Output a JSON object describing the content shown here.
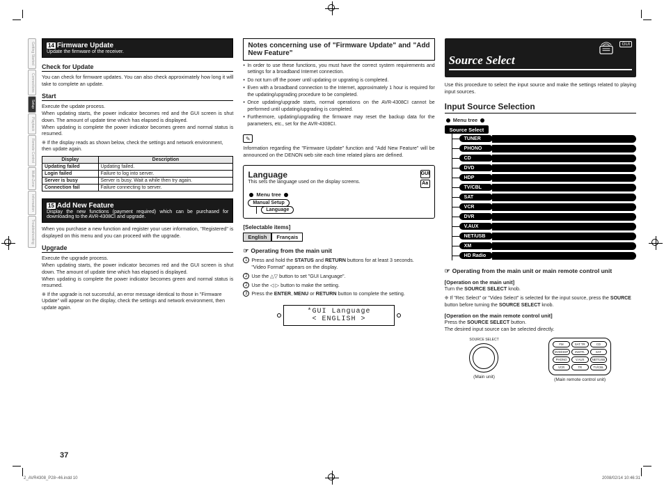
{
  "sidetabs": [
    "Getting Started",
    "Connections",
    "Setup",
    "Playback",
    "Remote Control",
    "Multi-Zone",
    "Information",
    "Troubleshooting"
  ],
  "sidetab_active_index": 2,
  "col1": {
    "fw_badge": "14",
    "fw_title": "Firmware Update",
    "fw_sub": "Update the firmware of the receiver.",
    "check_head": "Check for Update",
    "check_body": "You can check for firmware updates. You can also check approximately how long it will take to complete an update.",
    "start_head": "Start",
    "start_body1": "Execute the update process.",
    "start_body2": "When updating starts, the power indicator becomes red and the GUI screen is shut down. The amount of update time which has elapsed is displayed.",
    "start_body3": "When updating is complete the power indicator becomes green and normal status is resumed.",
    "start_note": "If the display reads as shown below, check the settings and network environment, then update again.",
    "err": {
      "headers": [
        "Display",
        "Description"
      ],
      "rows": [
        [
          "Updating failed",
          "Updating failed."
        ],
        [
          "Login failed",
          "Failure to log into server."
        ],
        [
          "Server is busy",
          "Server is busy. Wait a while then try again."
        ],
        [
          "Connection fail",
          "Failure connecting to server."
        ]
      ]
    },
    "add_badge": "15",
    "add_title": "Add New Feature",
    "add_sub": "Display the new functions (payment required) which can be purchased for downloading to the AVR-4308CI and upgrade.",
    "add_body": "When you purchase a new function and register your user information, \"Registered\" is displayed on this menu and you can proceed with the upgrade.",
    "upgrade_head": "Upgrade",
    "upgrade_body1": "Execute the upgrade process.",
    "upgrade_body2": "When updating starts, the power indicator becomes red and the GUI screen is shut down. The amount of update time which has elapsed is displayed.",
    "upgrade_body3": "When updating is complete the power indicator becomes green and normal status is resumed.",
    "upgrade_note": "If the upgrade is not successful, an error message identical to those in \"Firmware Update\" will appear on the display, check the settings and network environment, then update again."
  },
  "col2": {
    "notes_title": "Notes concerning use of \"Firmware Update\" and \"Add New Feature\"",
    "notes": [
      "In order to use these functions, you must have the correct system requirements and settings for a broadband Internet connection.",
      "Do not turn off the power until updating or upgrating is completed.",
      "Even with a broadband connection to the Internet, approximately 1 hour is required for the updating/upgrading procedure to be completed.",
      "Once updating/upgrade starts, normal operations on the AVR-4308CI cannot be performed until updating/upgrading is completed.",
      "Furthermore, updating/upgrading the firmware may reset the backup data for the parameters, etc., set for the AVR-4308CI."
    ],
    "info_body": "Information regarding the \"Firmware Update\" function and \"Add New Feature\" will be announced on the DENON web site each time related plans are defined.",
    "lang_title": "Language",
    "lang_sub": "This sets the language used on the display screens.",
    "lang_tree_root": "Manual Setup",
    "lang_tree_child": "Language",
    "menu_tree_label": "Menu tree",
    "sel_label": "[Selectable items]",
    "chips": [
      "English",
      "Français"
    ],
    "oper_head": "Operating from the main unit",
    "steps": [
      {
        "n": "1",
        "t": "Press and hold the <b>STATUS</b> and <b>RETURN</b> buttons for at least 3 seconds.",
        "s": "\"Video Format\" appears on the display."
      },
      {
        "n": "2",
        "t": "Use the △▽ button to set \"GUI Language\"."
      },
      {
        "n": "2",
        "t": "Use the ◁ ▷ button to make the setting."
      },
      {
        "n": "3",
        "t": "Press the <b>ENTER</b>, <b>MENU</b> or <b>RETURN</b> button to complete the setting."
      }
    ],
    "lcd_l1": "*GUI Language",
    "lcd_l2": "<  ENGLISH  >",
    "gui_label": "GUI",
    "aa_label": "Aa"
  },
  "col3": {
    "gui_label": "GUI",
    "src_title": "Source Select",
    "intro": "Use this procedure to select the input source and make the settings related to playing input sources.",
    "input_sel": "Input Source Selection",
    "menu_tree_label": "Menu tree",
    "root": "Source Select",
    "sources": [
      "TUNER",
      "PHONO",
      "CD",
      "DVD",
      "HDP",
      "TV/CBL",
      "SAT",
      "VCR",
      "DVR",
      "V.AUX",
      "NET/USB",
      "XM",
      "HD Radio"
    ],
    "op_title": "Operating from the main unit or main remote control unit",
    "op_main_h": "[Operation on the main unit]",
    "op_main_1": "Turn the <b>SOURCE SELECT</b> knob.",
    "op_main_note": "If \"Rec Select\" or \"Video Select\" is selected for the input source, press the <b>SOURCE</b> button before turning the <b>SOURCE SELECT</b> knob.",
    "op_remote_h": "[Operation on the main remote control unit]",
    "op_remote_1": "Press the <b>SOURCE SELECT</b> button.",
    "op_remote_2": "The desired input source can be selected directly.",
    "knob_label": "SOURCE SELECT",
    "remote_rows": [
      [
        "FM",
        "SAT TR",
        "CD"
      ],
      [
        "DVD/HDP",
        "INSTR.",
        "SAT"
      ],
      [
        "PHONO",
        "V.AUX",
        "NET/USB"
      ],
      [
        "VCR",
        "TR",
        "TV/CBL"
      ]
    ],
    "cap_main": "(Main unit)",
    "cap_remote": "(Main remote control unit)"
  },
  "page_num": "37",
  "foot_l": "2_AVR4308_P28~46.indd   10",
  "foot_r": "2008/02/14   10:46:31"
}
